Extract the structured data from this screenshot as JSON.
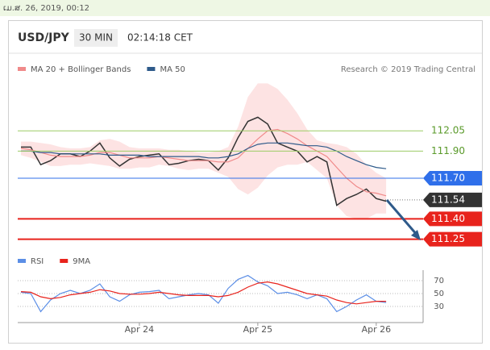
{
  "header": {
    "date": "ເມ.ສ. 26, 2019, 00:12",
    "symbol": "USD/JPY",
    "timeframe": "30 MIN",
    "time": "02:14:18 CET",
    "credit": "Research © 2019 Trading Central"
  },
  "chart_data": [
    {
      "type": "line",
      "x": [
        -24,
        -22,
        -20,
        -18,
        -16,
        -14,
        -12,
        -10,
        -8,
        -6,
        -4,
        -2,
        0,
        2,
        4,
        6,
        8,
        10,
        12,
        14,
        16,
        18,
        20,
        22,
        24,
        26,
        28,
        30,
        32,
        34,
        36,
        38,
        40,
        42,
        44,
        46,
        48,
        50
      ],
      "xlim": [
        -24.65,
        57.5
      ],
      "ylim": [
        111.17,
        112.48
      ],
      "series": [
        {
          "color": "#333333",
          "values": [
            111.93,
            111.93,
            111.8,
            111.83,
            111.88,
            111.88,
            111.86,
            111.9,
            111.96,
            111.85,
            111.79,
            111.84,
            111.86,
            111.87,
            111.88,
            111.8,
            111.81,
            111.83,
            111.84,
            111.83,
            111.76,
            111.85,
            112.0,
            112.12,
            112.15,
            112.1,
            111.96,
            111.93,
            111.9,
            111.82,
            111.86,
            111.82,
            111.5,
            111.55,
            111.58,
            111.62,
            111.55,
            111.53
          ]
        },
        {
          "name": "MA 20 + Bollinger Bands",
          "color": "#f08a8a",
          "band_color": "#fde3e3",
          "values": [
            111.92,
            111.91,
            111.89,
            111.87,
            111.86,
            111.86,
            111.86,
            111.87,
            111.89,
            111.89,
            111.87,
            111.85,
            111.85,
            111.85,
            111.86,
            111.85,
            111.84,
            111.83,
            111.83,
            111.83,
            111.82,
            111.82,
            111.85,
            111.92,
            111.99,
            112.05,
            112.06,
            112.03,
            111.99,
            111.94,
            111.9,
            111.86,
            111.78,
            111.7,
            111.64,
            111.6,
            111.59,
            111.57
          ],
          "upper": [
            111.97,
            111.97,
            111.96,
            111.95,
            111.93,
            111.92,
            111.92,
            111.93,
            111.98,
            111.99,
            111.97,
            111.93,
            111.92,
            111.92,
            111.92,
            111.91,
            111.91,
            111.9,
            111.89,
            111.89,
            111.9,
            111.93,
            112.08,
            112.3,
            112.4,
            112.4,
            112.36,
            112.28,
            112.18,
            112.06,
            111.98,
            111.96,
            111.95,
            111.93,
            111.88,
            111.8,
            111.74,
            111.7
          ],
          "lower": [
            111.87,
            111.85,
            111.82,
            111.79,
            111.79,
            111.8,
            111.8,
            111.81,
            111.8,
            111.79,
            111.77,
            111.77,
            111.78,
            111.78,
            111.8,
            111.79,
            111.77,
            111.76,
            111.77,
            111.77,
            111.74,
            111.71,
            111.62,
            111.58,
            111.63,
            111.72,
            111.78,
            111.8,
            111.8,
            111.82,
            111.76,
            111.7,
            111.5,
            111.42,
            111.4,
            111.4,
            111.44,
            111.44
          ]
        },
        {
          "name": "MA 50",
          "color": "#2e5a8a",
          "values": [
            111.9,
            111.9,
            111.89,
            111.89,
            111.88,
            111.88,
            111.88,
            111.88,
            111.88,
            111.87,
            111.87,
            111.87,
            111.87,
            111.86,
            111.86,
            111.86,
            111.86,
            111.86,
            111.86,
            111.85,
            111.85,
            111.86,
            111.88,
            111.92,
            111.95,
            111.96,
            111.96,
            111.96,
            111.95,
            111.94,
            111.94,
            111.93,
            111.9,
            111.86,
            111.83,
            111.8,
            111.78,
            111.77
          ]
        }
      ],
      "levels": [
        {
          "value": 112.05,
          "label": "112.05",
          "color": "#9ccc65",
          "style": "text"
        },
        {
          "value": 111.9,
          "label": "111.90",
          "color": "#9ccc65",
          "style": "text"
        },
        {
          "value": 111.7,
          "label": "111.70",
          "color": "#2f6fea",
          "style": "box"
        },
        {
          "value": 111.54,
          "label": "111.54",
          "color": "#333333",
          "style": "dotted"
        },
        {
          "value": 111.4,
          "label": "111.40",
          "color": "#e8231c",
          "style": "box"
        },
        {
          "value": 111.25,
          "label": "111.25",
          "color": "#e8231c",
          "style": "box"
        }
      ]
    },
    {
      "type": "line",
      "x": [
        -24,
        -22,
        -20,
        -18,
        -16,
        -14,
        -12,
        -10,
        -8,
        -6,
        -4,
        -2,
        0,
        2,
        4,
        6,
        8,
        10,
        12,
        14,
        16,
        18,
        20,
        22,
        24,
        26,
        28,
        30,
        32,
        34,
        36,
        38,
        40,
        42,
        44,
        46,
        48,
        50
      ],
      "xlim": [
        -24.65,
        57.5
      ],
      "xticks": [
        {
          "value": 0,
          "label": "Apr 24"
        },
        {
          "value": 24,
          "label": "Apr 25"
        },
        {
          "value": 48,
          "label": "Apr 26"
        }
      ],
      "ylim": [
        8.75,
        86.25
      ],
      "yticks": [
        30,
        50,
        70
      ],
      "grid": true,
      "series": [
        {
          "name": "RSI",
          "color": "#5b8ee6",
          "values": [
            52,
            50,
            22,
            40,
            50,
            55,
            50,
            55,
            65,
            45,
            38,
            48,
            52,
            53,
            55,
            42,
            45,
            48,
            50,
            48,
            35,
            58,
            72,
            78,
            68,
            62,
            50,
            52,
            48,
            42,
            48,
            42,
            22,
            30,
            40,
            48,
            38,
            36
          ]
        },
        {
          "name": "9MA",
          "color": "#e8231c",
          "values": [
            53,
            52,
            45,
            42,
            44,
            48,
            50,
            52,
            56,
            54,
            50,
            49,
            49,
            50,
            52,
            50,
            48,
            47,
            47,
            47,
            45,
            47,
            52,
            60,
            66,
            68,
            65,
            60,
            55,
            50,
            48,
            46,
            40,
            36,
            34,
            36,
            38,
            38
          ]
        }
      ]
    }
  ]
}
